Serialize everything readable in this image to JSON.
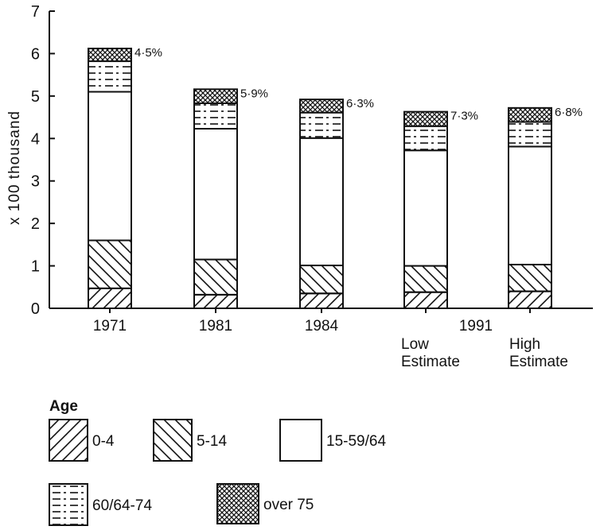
{
  "chart_data": {
    "type": "bar",
    "stacked": true,
    "ylabel": "x 100 thousand",
    "ylim": [
      0,
      7
    ],
    "yticks": [
      "0",
      "1",
      "2",
      "3",
      "4",
      "5",
      "6",
      "7"
    ],
    "categories": [
      "1971",
      "1981",
      "1984",
      "1991 Low Estimate",
      "1991 High Estimate"
    ],
    "category_labels": [
      "1971",
      "1981",
      "1984",
      "",
      ""
    ],
    "group_label": "1991",
    "sub_labels": [
      [
        "Low",
        "Estimate"
      ],
      [
        "High",
        "Estimate"
      ]
    ],
    "legend_title": "Age",
    "series": [
      {
        "name": "0-4",
        "pattern": "hatch-forward",
        "values": [
          0.47,
          0.32,
          0.35,
          0.38,
          0.4
        ]
      },
      {
        "name": "5-14",
        "pattern": "hatch-back",
        "values": [
          1.13,
          0.83,
          0.66,
          0.62,
          0.63
        ]
      },
      {
        "name": "15-59/64",
        "pattern": "blank",
        "values": [
          3.5,
          3.08,
          3.0,
          2.72,
          2.78
        ]
      },
      {
        "name": "60/64-74",
        "pattern": "dash-dot-lines",
        "values": [
          0.72,
          0.6,
          0.6,
          0.57,
          0.58
        ]
      },
      {
        "name": "over 75",
        "pattern": "crosshatch",
        "values": [
          0.3,
          0.33,
          0.31,
          0.34,
          0.33
        ]
      }
    ],
    "annotations": [
      "4·5%",
      "5·9%",
      "6·3%",
      "7·3%",
      "6·8%"
    ],
    "grid": false,
    "legend_position": "bottom"
  }
}
